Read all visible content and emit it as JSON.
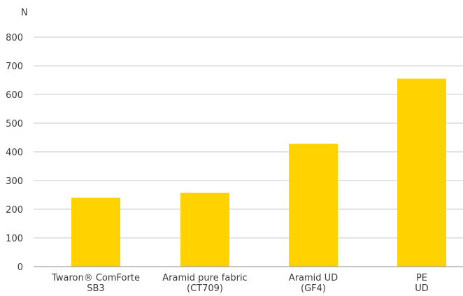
{
  "chart_data": {
    "type": "bar",
    "ylabel": "N",
    "ylim": [
      0,
      800
    ],
    "yticks": [
      0,
      100,
      200,
      300,
      400,
      500,
      600,
      700,
      800
    ],
    "grid": true,
    "categories": [
      [
        "Twaron® ComForte",
        "SB3"
      ],
      [
        "Aramid pure fabric",
        "(CT709)"
      ],
      [
        "Aramid UD",
        "(GF4)"
      ],
      [
        "PE",
        "UD"
      ]
    ],
    "values": [
      240,
      257,
      428,
      655
    ],
    "bar_color": "#FFD200"
  }
}
